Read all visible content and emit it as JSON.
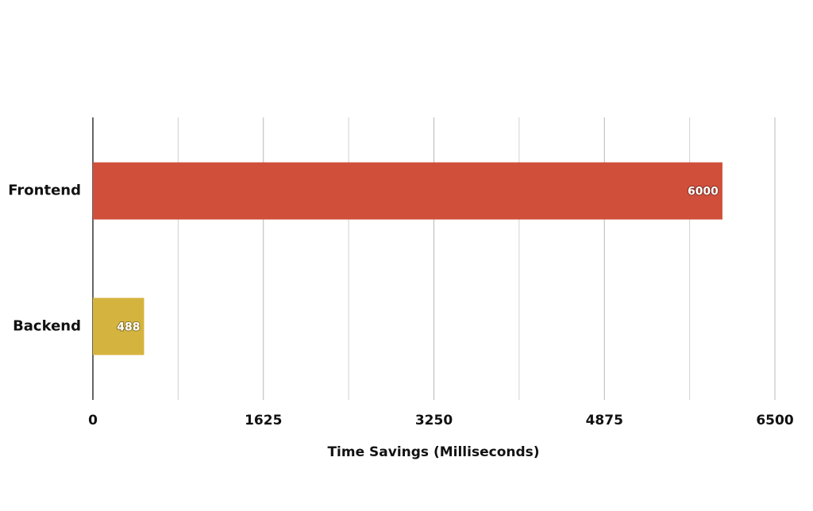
{
  "chart_data": {
    "type": "hbar",
    "categories": [
      "Frontend",
      "Backend"
    ],
    "values": [
      6000,
      488
    ],
    "colors": [
      "#d04f3a",
      "#d4b43e"
    ],
    "xlabel": "Time Savings (Milliseconds)",
    "xlim": [
      0,
      6500
    ],
    "xticks": [
      0,
      1625,
      3250,
      4875,
      6500
    ],
    "xminorticks": [
      812.5,
      2437.5,
      4062.5,
      5687.5
    ],
    "grid": true
  }
}
